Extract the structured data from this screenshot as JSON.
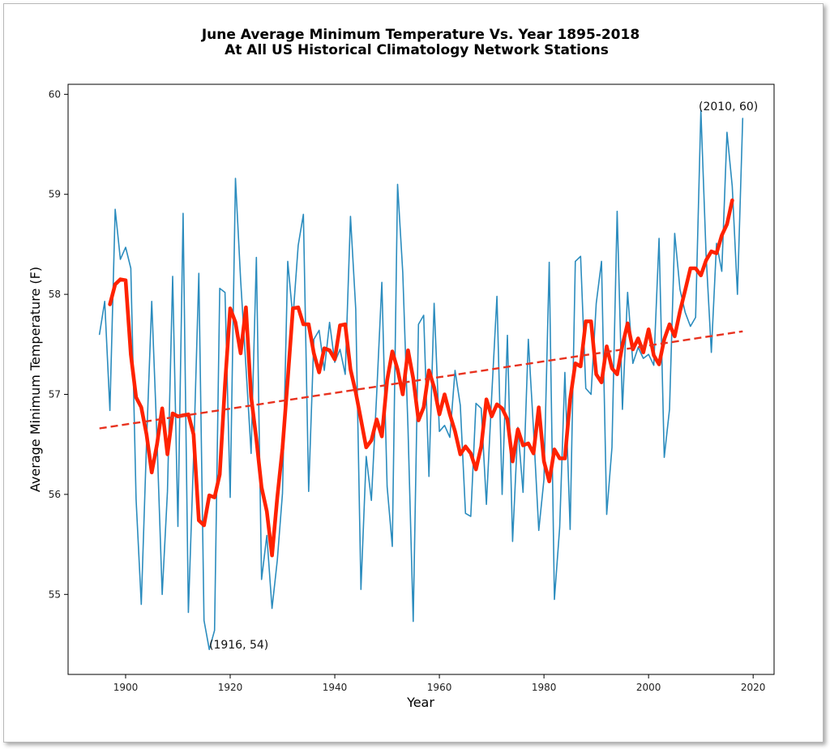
{
  "chart_data": {
    "type": "line",
    "title": "June Average Minimum Temperature Vs. Year 1895-2018",
    "subtitle": "At All US Historical Climatology Network Stations",
    "xlabel": "Year",
    "ylabel": "Average Minimum Temperature (F)",
    "xlim": [
      1889,
      2024
    ],
    "ylim": [
      54.2,
      60.1
    ],
    "xticks": [
      1900,
      1920,
      1940,
      1960,
      1980,
      2000,
      2020
    ],
    "yticks": [
      55,
      56,
      57,
      58,
      59,
      60
    ],
    "grid": false,
    "series": [
      {
        "role": "annual",
        "color": "#2b8cbe",
        "x": [
          1895,
          1896,
          1897,
          1898,
          1899,
          1900,
          1901,
          1902,
          1903,
          1904,
          1905,
          1906,
          1907,
          1908,
          1909,
          1910,
          1911,
          1912,
          1913,
          1914,
          1915,
          1916,
          1917,
          1918,
          1919,
          1920,
          1921,
          1922,
          1923,
          1924,
          1925,
          1926,
          1927,
          1928,
          1929,
          1930,
          1931,
          1932,
          1933,
          1934,
          1935,
          1936,
          1937,
          1938,
          1939,
          1940,
          1941,
          1942,
          1943,
          1944,
          1945,
          1946,
          1947,
          1948,
          1949,
          1950,
          1951,
          1952,
          1953,
          1954,
          1955,
          1956,
          1957,
          1958,
          1959,
          1960,
          1961,
          1962,
          1963,
          1964,
          1965,
          1966,
          1967,
          1968,
          1969,
          1970,
          1971,
          1972,
          1973,
          1974,
          1975,
          1976,
          1977,
          1978,
          1979,
          1980,
          1981,
          1982,
          1983,
          1984,
          1985,
          1986,
          1987,
          1988,
          1989,
          1990,
          1991,
          1992,
          1993,
          1994,
          1995,
          1996,
          1997,
          1998,
          1999,
          2000,
          2001,
          2002,
          2003,
          2004,
          2005,
          2006,
          2007,
          2008,
          2009,
          2010,
          2011,
          2012,
          2013,
          2014,
          2015,
          2016,
          2017,
          2018
        ],
        "values": [
          57.6,
          57.93,
          56.84,
          58.85,
          58.35,
          58.47,
          58.26,
          55.95,
          54.9,
          56.52,
          57.93,
          56.55,
          55.0,
          56.03,
          58.18,
          55.68,
          58.81,
          54.82,
          56.37,
          58.21,
          54.74,
          54.45,
          54.64,
          58.06,
          58.02,
          55.97,
          59.16,
          58.14,
          57.28,
          56.41,
          58.37,
          55.15,
          55.59,
          54.86,
          55.34,
          56.01,
          58.33,
          57.76,
          58.49,
          58.8,
          56.03,
          57.55,
          57.64,
          57.24,
          57.72,
          57.32,
          57.45,
          57.2,
          58.78,
          57.85,
          55.05,
          56.38,
          55.94,
          57.0,
          58.12,
          56.08,
          55.48,
          59.1,
          58.22,
          56.65,
          54.73,
          57.7,
          57.79,
          56.18,
          57.91,
          56.63,
          56.69,
          56.57,
          57.24,
          56.89,
          55.81,
          55.78,
          56.91,
          56.86,
          55.9,
          56.98,
          57.98,
          56.0,
          57.59,
          55.53,
          56.67,
          56.02,
          57.55,
          56.65,
          55.64,
          56.15,
          58.32,
          54.95,
          55.67,
          57.22,
          55.65,
          58.33,
          58.38,
          57.06,
          57.0,
          57.91,
          58.33,
          55.8,
          56.47,
          58.83,
          56.85,
          58.02,
          57.31,
          57.47,
          57.36,
          57.4,
          57.29,
          58.56,
          56.37,
          56.85,
          58.61,
          58.05,
          57.82,
          57.68,
          57.77,
          59.84,
          58.4,
          57.42,
          58.51,
          58.23,
          59.62,
          59.08,
          58.0,
          59.76
        ]
      },
      {
        "role": "running-mean",
        "color": "#ff2200",
        "x": [
          1897,
          1898,
          1899,
          1900,
          1901,
          1902,
          1903,
          1904,
          1905,
          1906,
          1907,
          1908,
          1909,
          1910,
          1911,
          1912,
          1913,
          1914,
          1915,
          1916,
          1917,
          1918,
          1919,
          1920,
          1921,
          1922,
          1923,
          1924,
          1925,
          1926,
          1927,
          1928,
          1929,
          1930,
          1931,
          1932,
          1933,
          1934,
          1935,
          1936,
          1937,
          1938,
          1939,
          1940,
          1941,
          1942,
          1943,
          1944,
          1945,
          1946,
          1947,
          1948,
          1949,
          1950,
          1951,
          1952,
          1953,
          1954,
          1955,
          1956,
          1957,
          1958,
          1959,
          1960,
          1961,
          1962,
          1963,
          1964,
          1965,
          1966,
          1967,
          1968,
          1969,
          1970,
          1971,
          1972,
          1973,
          1974,
          1975,
          1976,
          1977,
          1978,
          1979,
          1980,
          1981,
          1982,
          1983,
          1984,
          1985,
          1986,
          1987,
          1988,
          1989,
          1990,
          1991,
          1992,
          1993,
          1994,
          1995,
          1996,
          1997,
          1998,
          1999,
          2000,
          2001,
          2002,
          2003,
          2004,
          2005,
          2006,
          2007,
          2008,
          2009,
          2010,
          2011,
          2012,
          2013,
          2014,
          2015,
          2016
        ],
        "values": [
          57.9,
          58.1,
          58.15,
          58.14,
          57.4,
          56.97,
          56.87,
          56.6,
          56.22,
          56.5,
          56.86,
          56.4,
          56.81,
          56.78,
          56.79,
          56.8,
          56.6,
          55.74,
          55.69,
          55.99,
          55.97,
          56.2,
          57.1,
          57.86,
          57.72,
          57.41,
          57.87,
          56.98,
          56.55,
          56.07,
          55.83,
          55.39,
          55.97,
          56.46,
          57.15,
          57.86,
          57.87,
          57.7,
          57.7,
          57.41,
          57.22,
          57.46,
          57.44,
          57.35,
          57.69,
          57.7,
          57.25,
          57.02,
          56.75,
          56.47,
          56.54,
          56.75,
          56.58,
          57.14,
          57.43,
          57.25,
          57.0,
          57.44,
          57.16,
          56.74,
          56.87,
          57.24,
          57.07,
          56.8,
          57.0,
          56.8,
          56.63,
          56.4,
          56.48,
          56.41,
          56.25,
          56.48,
          56.95,
          56.78,
          56.9,
          56.86,
          56.75,
          56.33,
          56.65,
          56.49,
          56.51,
          56.41,
          56.87,
          56.33,
          56.13,
          56.45,
          56.36,
          56.36,
          56.95,
          57.31,
          57.28,
          57.73,
          57.73,
          57.2,
          57.12,
          57.48,
          57.26,
          57.2,
          57.49,
          57.71,
          57.45,
          57.56,
          57.42,
          57.65,
          57.39,
          57.3,
          57.55,
          57.7,
          57.58,
          57.83,
          58.04,
          58.26,
          58.26,
          58.19,
          58.34,
          58.43,
          58.41,
          58.59,
          58.7,
          58.94
        ]
      },
      {
        "role": "trend",
        "color": "#e8321f",
        "style": "dashed",
        "x": [
          1895,
          2018
        ],
        "values": [
          56.66,
          57.63
        ]
      }
    ],
    "annotations": [
      {
        "text": "(2010, 60)",
        "x": 2010,
        "y": 60
      },
      {
        "text": "(1916, 54)",
        "x": 1916,
        "y": 54
      }
    ]
  }
}
